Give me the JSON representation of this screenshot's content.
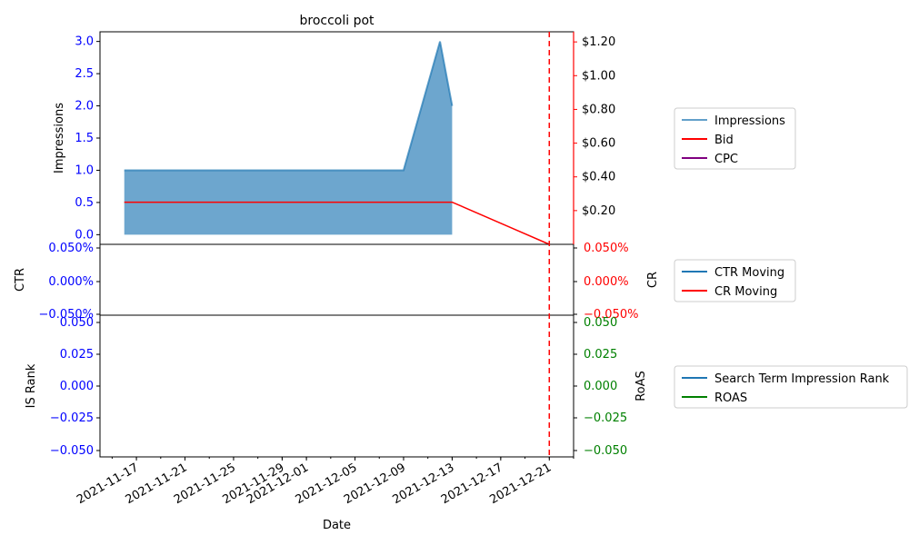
{
  "chart_data": [
    {
      "type": "area",
      "title": "broccoli pot",
      "xlabel": "",
      "ylabel": "Impressions",
      "ylabel_right": "",
      "ylim": [
        -0.15,
        3.15
      ],
      "ylim_right": [
        0.0,
        1.26
      ],
      "yticks_left": [
        "0.0",
        "0.5",
        "1.0",
        "1.5",
        "2.0",
        "2.5",
        "3.0"
      ],
      "yticks_right": [
        "$0.20",
        "$0.40",
        "$0.60",
        "$0.80",
        "$1.00",
        "$1.20"
      ],
      "left_tick_color": "#0000ff",
      "right_tick_color": "#ff0000",
      "x_range": [
        "2021-11-14",
        "2021-12-23"
      ],
      "vline": {
        "x": "2021-12-21",
        "color": "#ff0000",
        "style": "dashed"
      },
      "legend": {
        "placement": "right",
        "entries": [
          "Impressions",
          "Bid",
          "CPC"
        ]
      },
      "series": [
        {
          "name": "Impressions",
          "kind": "area",
          "color": "#1f77b4",
          "axis": "left",
          "points": [
            [
              "2021-11-16",
              1
            ],
            [
              "2021-12-09",
              1
            ],
            [
              "2021-12-12",
              3
            ],
            [
              "2021-12-13",
              2
            ]
          ]
        },
        {
          "name": "Bid",
          "kind": "line",
          "color": "#ff0000",
          "axis": "right",
          "points": [
            [
              "2021-11-16",
              0.25
            ],
            [
              "2021-12-13",
              0.25
            ],
            [
              "2021-12-21",
              0.0
            ]
          ]
        },
        {
          "name": "CPC",
          "kind": "line",
          "color": "#800080",
          "axis": "right",
          "points": []
        }
      ]
    },
    {
      "type": "line",
      "title": "",
      "ylabel": "CTR",
      "ylabel_right": "CR",
      "yticks_left": [
        "0.050%",
        "0.000%",
        "−0.050%"
      ],
      "yticks_right": [
        "0.050%",
        "0.000%",
        "−0.050%"
      ],
      "left_tick_color": "#0000ff",
      "right_tick_color": "#ff0000",
      "legend": {
        "placement": "right",
        "entries": [
          "CTR Moving",
          "CR Moving"
        ]
      },
      "series": [
        {
          "name": "CTR Moving",
          "color": "#1f77b4",
          "points": []
        },
        {
          "name": "CR Moving",
          "color": "#ff0000",
          "points": []
        }
      ]
    },
    {
      "type": "line",
      "title": "",
      "xlabel": "Date",
      "ylabel": "IS Rank",
      "ylabel_right": "RoAS",
      "yticks_left": [
        "0.050",
        "0.025",
        "0.000",
        "−0.025",
        "−0.050"
      ],
      "yticks_right": [
        "0.050",
        "0.025",
        "0.000",
        "−0.025",
        "−0.050"
      ],
      "left_tick_color": "#0000ff",
      "right_tick_color": "#008000",
      "xticks": [
        "2021-11-17",
        "2021-11-21",
        "2021-11-25",
        "2021-11-29",
        "2021-12-01",
        "2021-12-05",
        "2021-12-09",
        "2021-12-13",
        "2021-12-17",
        "2021-12-21"
      ],
      "legend": {
        "placement": "right",
        "entries": [
          "Search Term Impression Rank",
          "ROAS"
        ]
      },
      "series": [
        {
          "name": "Search Term Impression Rank",
          "color": "#1f77b4",
          "points": []
        },
        {
          "name": "ROAS",
          "color": "#008000",
          "points": []
        }
      ]
    }
  ]
}
